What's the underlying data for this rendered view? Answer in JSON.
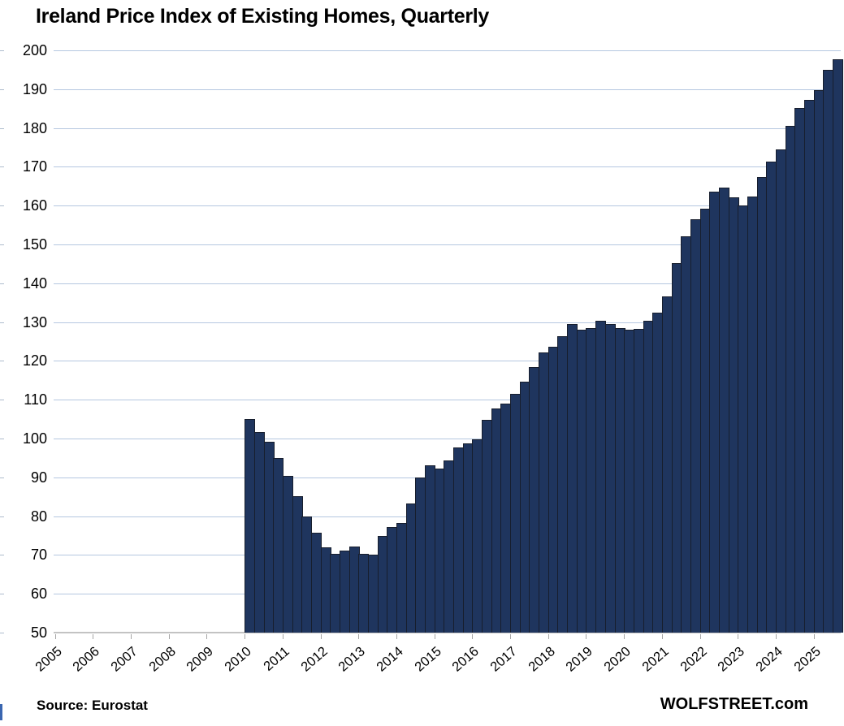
{
  "title": "Ireland Price Index of Existing Homes, Quarterly",
  "footer": {
    "source_label": "Source: Eurostat",
    "brand_label": "WOLFSTREET.com"
  },
  "chart_data": {
    "type": "bar",
    "title": "Ireland Price Index of Existing Homes, Quarterly",
    "x": [
      "2010Q1",
      "2010Q2",
      "2010Q3",
      "2010Q4",
      "2011Q1",
      "2011Q2",
      "2011Q3",
      "2011Q4",
      "2012Q1",
      "2012Q2",
      "2012Q3",
      "2012Q4",
      "2013Q1",
      "2013Q2",
      "2013Q3",
      "2013Q4",
      "2014Q1",
      "2014Q2",
      "2014Q3",
      "2014Q4",
      "2015Q1",
      "2015Q2",
      "2015Q3",
      "2015Q4",
      "2016Q1",
      "2016Q2",
      "2016Q3",
      "2016Q4",
      "2017Q1",
      "2017Q2",
      "2017Q3",
      "2017Q4",
      "2018Q1",
      "2018Q2",
      "2018Q3",
      "2018Q4",
      "2019Q1",
      "2019Q2",
      "2019Q3",
      "2019Q4",
      "2020Q1",
      "2020Q2",
      "2020Q3",
      "2020Q4",
      "2021Q1",
      "2021Q2",
      "2021Q3",
      "2021Q4",
      "2022Q1",
      "2022Q2",
      "2022Q3",
      "2022Q4",
      "2023Q1",
      "2023Q2",
      "2023Q3",
      "2023Q4",
      "2024Q1",
      "2024Q2",
      "2024Q3",
      "2024Q4",
      "2025Q1",
      "2025Q2",
      "2025Q3"
    ],
    "values": [
      105.0,
      101.6,
      99.1,
      94.9,
      90.4,
      85.1,
      80.0,
      75.8,
      72.0,
      70.3,
      71.2,
      72.1,
      70.2,
      70.1,
      74.9,
      77.3,
      78.3,
      83.2,
      89.9,
      93.0,
      92.3,
      94.4,
      97.6,
      98.8,
      99.8,
      104.8,
      107.8,
      109.1,
      111.6,
      114.6,
      118.5,
      122.1,
      123.7,
      126.4,
      129.4,
      128.0,
      128.4,
      130.3,
      129.5,
      128.5,
      128.0,
      128.3,
      130.4,
      132.4,
      136.7,
      145.1,
      152.0,
      156.5,
      159.2,
      163.5,
      164.7,
      162.2,
      160.1,
      162.3,
      167.3,
      171.3,
      174.5,
      180.6,
      185.1,
      187.2,
      189.7,
      194.9,
      197.6
    ],
    "ylim": [
      50,
      200
    ],
    "ytick_interval": 10,
    "ytick_labels": [
      "200",
      "190",
      "180",
      "170",
      "160",
      "150",
      "140",
      "130",
      "120",
      "110",
      "100",
      "90",
      "80",
      "70",
      "60",
      "50"
    ],
    "xtick_year_labels": [
      "2005",
      "2006",
      "2007",
      "2008",
      "2009",
      "2010",
      "2011",
      "2012",
      "2013",
      "2014",
      "2015",
      "2016",
      "2017",
      "2018",
      "2019",
      "2020",
      "2021",
      "2022",
      "2023",
      "2024",
      "2025"
    ],
    "x_axis_span_quarters": 83,
    "x_axis_start": "2005Q1",
    "data_start_offset_quarters": 20,
    "grid": true,
    "legend": false,
    "bar_color": "#1f355e",
    "bar_border_color": "#171e2d",
    "gridline_color": "#b5c7e0",
    "axis_line_color": "#c3c3c3"
  }
}
